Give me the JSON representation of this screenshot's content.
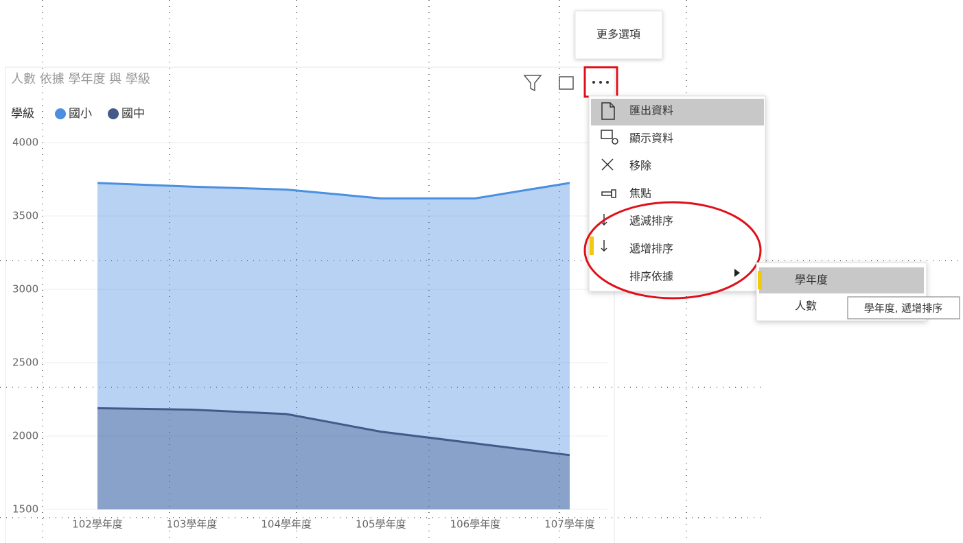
{
  "chart_data": {
    "type": "area",
    "title": "人數 依據 學年度 與 學級",
    "legend_title": "學級",
    "categories": [
      "102學年度",
      "103學年度",
      "104學年度",
      "105學年度",
      "106學年度",
      "107學年度"
    ],
    "series": [
      {
        "name": "國小",
        "color": "#4a8fe0",
        "values": [
          3725,
          3700,
          3680,
          3620,
          3620,
          3725
        ]
      },
      {
        "name": "國中",
        "color": "#44598a",
        "values": [
          2190,
          2180,
          2150,
          2030,
          1950,
          1870
        ]
      }
    ],
    "ylim": [
      1500,
      4000
    ],
    "yticks": [
      1500,
      2000,
      2500,
      3000,
      3500,
      4000
    ],
    "grid": true
  },
  "tooltip": "更多選項",
  "menu": {
    "items": [
      "匯出資料",
      "顯示資料",
      "移除",
      "焦點",
      "遞減排序",
      "遞增排序",
      "排序依據"
    ]
  },
  "submenu": {
    "items": [
      "學年度",
      "人數"
    ]
  },
  "hover_tooltip": "學年度, 遞增排序"
}
